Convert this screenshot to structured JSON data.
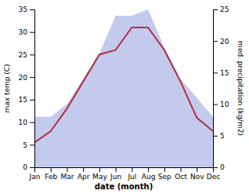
{
  "chart_data": {
    "type": "line",
    "xlabel": "date (month)",
    "ylabel": "max temp (C)",
    "y2label": "med. precipitation (kg/m2)",
    "categories": [
      "Jan",
      "Feb",
      "Mar",
      "Apr",
      "May",
      "Jun",
      "Jul",
      "Aug",
      "Sep",
      "Oct",
      "Nov",
      "Dec"
    ],
    "series": [
      {
        "type": "area",
        "axis": "y2",
        "color": "#b0b8e8",
        "values": [
          8,
          8,
          10,
          14,
          18,
          24,
          24,
          25,
          19,
          14,
          11,
          8
        ]
      },
      {
        "type": "line",
        "color": "#b03040",
        "values": [
          5.5,
          8.0,
          13.0,
          19.0,
          25.0,
          26.0,
          31.0,
          31.0,
          26.0,
          19.0,
          11.0,
          8.0
        ]
      }
    ],
    "ylim": [
      0,
      35
    ],
    "yticks": [
      0,
      5,
      10,
      15,
      20,
      25,
      30,
      35
    ],
    "y2lim": [
      0,
      25
    ],
    "y2ticks": [
      0,
      5,
      10,
      15,
      20,
      25
    ],
    "grid": false
  }
}
